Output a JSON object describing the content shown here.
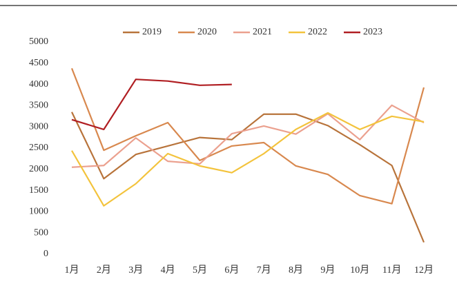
{
  "chart_data": {
    "type": "line",
    "categories": [
      "1月",
      "2月",
      "3月",
      "4月",
      "5月",
      "6月",
      "7月",
      "8月",
      "9月",
      "10月",
      "11月",
      "12月"
    ],
    "series": [
      {
        "name": "2019",
        "color": "#b8733a",
        "values": [
          3350,
          1780,
          2350,
          2550,
          2750,
          2700,
          3300,
          3300,
          3030,
          2580,
          2090,
          280
        ]
      },
      {
        "name": "2020",
        "color": "#d8884e",
        "values": [
          4380,
          2450,
          2790,
          3100,
          2210,
          2550,
          2630,
          2080,
          1880,
          1380,
          1190,
          3930
        ]
      },
      {
        "name": "2021",
        "color": "#eba08e",
        "values": [
          2050,
          2090,
          2740,
          2190,
          2130,
          2840,
          3020,
          2830,
          3310,
          2700,
          3510,
          3100
        ]
      },
      {
        "name": "2022",
        "color": "#f3c33c",
        "values": [
          2440,
          1140,
          1660,
          2370,
          2080,
          1920,
          2370,
          2940,
          3330,
          2940,
          3250,
          3120
        ]
      },
      {
        "name": "2023",
        "color": "#b01e22",
        "values": [
          3170,
          2940,
          4120,
          4080,
          3980,
          4000,
          null,
          null,
          null,
          null,
          null,
          null
        ]
      }
    ],
    "ylim": [
      0,
      5000
    ],
    "yticks": [
      0,
      500,
      1000,
      1500,
      2000,
      2500,
      3000,
      3500,
      4000,
      4500,
      5000
    ]
  }
}
